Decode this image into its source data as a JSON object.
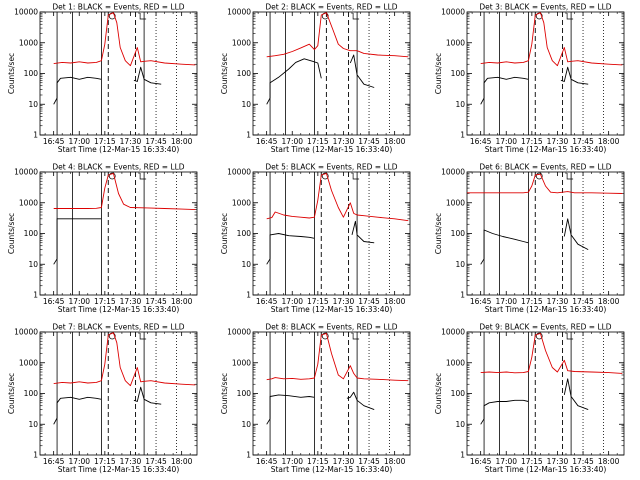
{
  "figure": {
    "title_template": "Det {n}: BLACK = Events, RED = LLD",
    "xlabel": "Start Time (12-Mar-15 16:33:40)",
    "ylabel": "Counts/sec",
    "x_tick_labels": [
      "16:45",
      "17:00",
      "17:15",
      "17:30",
      "17:45",
      "18:00"
    ],
    "y_tick_labels": [
      "1",
      "10",
      "100",
      "1000",
      "10000"
    ]
  },
  "chart_data": [
    {
      "type": "line",
      "detector": 1,
      "title": "Det 1: BLACK = Events, RED = LLD",
      "xlabel": "Start Time (12-Mar-15 16:33:40)",
      "ylabel": "Counts/sec",
      "xlim": [
        "16:37",
        "18:09"
      ],
      "ylim": [
        1,
        10000
      ],
      "y_scale": "log",
      "solid_markers": [
        "16:47",
        "16:56",
        "17:13",
        "17:38"
      ],
      "dashed_markers": [
        "17:17",
        "17:33"
      ],
      "dotted_markers": [
        "17:45",
        "17:57"
      ],
      "series": [
        {
          "name": "BLACK = Events",
          "color": "#000000",
          "x": [
            "16:45",
            "16:47",
            "16:47",
            "16:49",
            "16:55",
            "17:00",
            "17:05",
            "17:10",
            "17:13",
            "17:14",
            "17:30",
            "17:32",
            "17:34",
            "17:36",
            "17:38",
            "17:42",
            "17:48"
          ],
          "y": [
            10,
            16,
            50,
            70,
            75,
            65,
            75,
            70,
            65,
            null,
            null,
            60,
            55,
            160,
            65,
            50,
            45
          ]
        },
        {
          "name": "RED = LLD",
          "color": "#dd0000",
          "x": [
            "16:45",
            "16:50",
            "16:55",
            "17:00",
            "17:05",
            "17:10",
            "17:13",
            "17:15",
            "17:17",
            "17:20",
            "17:22",
            "17:24",
            "17:27",
            "17:30",
            "17:34",
            "17:36",
            "17:38",
            "17:42",
            "17:50",
            "18:00",
            "18:08"
          ],
          "y": [
            210,
            230,
            220,
            240,
            220,
            230,
            260,
            900,
            8000,
            9500,
            4500,
            700,
            260,
            180,
            700,
            240,
            250,
            260,
            220,
            200,
            190
          ]
        }
      ]
    },
    {
      "type": "line",
      "detector": 2,
      "title": "Det 2: BLACK = Events, RED = LLD",
      "xlabel": "Start Time (12-Mar-15 16:33:40)",
      "ylabel": "Counts/sec",
      "xlim": [
        "16:37",
        "18:09"
      ],
      "ylim": [
        1,
        10000
      ],
      "y_scale": "log",
      "solid_markers": [
        "16:47",
        "16:56",
        "17:13",
        "17:38"
      ],
      "dashed_markers": [
        "17:20",
        "17:33"
      ],
      "dotted_markers": [
        "17:45",
        "17:57"
      ],
      "series": [
        {
          "name": "BLACK = Events",
          "color": "#000000",
          "x": [
            "16:45",
            "16:47",
            "16:47",
            "16:52",
            "16:58",
            "17:02",
            "17:07",
            "17:12",
            "17:15",
            "17:17",
            "17:19",
            "17:32",
            "17:34",
            "17:36",
            "17:38",
            "17:42",
            "17:48"
          ],
          "y": [
            10,
            16,
            50,
            75,
            140,
            230,
            300,
            250,
            220,
            70,
            null,
            null,
            220,
            400,
            90,
            45,
            35
          ]
        },
        {
          "name": "RED = LLD",
          "color": "#dd0000",
          "x": [
            "16:45",
            "16:50",
            "16:55",
            "17:00",
            "17:05",
            "17:10",
            "17:13",
            "17:15",
            "17:17",
            "17:20",
            "17:24",
            "17:27",
            "17:30",
            "17:34",
            "17:38",
            "17:42",
            "17:50",
            "18:00",
            "18:08"
          ],
          "y": [
            350,
            380,
            420,
            520,
            680,
            900,
            600,
            800,
            8000,
            9500,
            2500,
            900,
            650,
            550,
            550,
            450,
            400,
            380,
            350
          ]
        }
      ]
    },
    {
      "type": "line",
      "detector": 3,
      "title": "Det 3: BLACK = Events, RED = LLD",
      "xlabel": "Start Time (12-Mar-15 16:33:40)",
      "ylabel": "Counts/sec",
      "xlim": [
        "16:37",
        "18:09"
      ],
      "ylim": [
        1,
        10000
      ],
      "y_scale": "log",
      "solid_markers": [
        "16:47",
        "16:56",
        "17:13",
        "17:38"
      ],
      "dashed_markers": [
        "17:17",
        "17:33"
      ],
      "dotted_markers": [
        "17:45",
        "17:57"
      ],
      "series": [
        {
          "name": "BLACK = Events",
          "color": "#000000",
          "x": [
            "16:45",
            "16:47",
            "16:47",
            "16:49",
            "16:55",
            "17:00",
            "17:05",
            "17:10",
            "17:13",
            "17:14",
            "17:30",
            "17:32",
            "17:34",
            "17:36",
            "17:38",
            "17:42",
            "17:48"
          ],
          "y": [
            10,
            16,
            50,
            70,
            75,
            65,
            75,
            70,
            65,
            null,
            null,
            60,
            55,
            160,
            65,
            50,
            45
          ]
        },
        {
          "name": "RED = LLD",
          "color": "#dd0000",
          "x": [
            "16:45",
            "16:50",
            "16:55",
            "17:00",
            "17:05",
            "17:10",
            "17:13",
            "17:15",
            "17:17",
            "17:20",
            "17:22",
            "17:24",
            "17:27",
            "17:30",
            "17:34",
            "17:36",
            "17:38",
            "17:42",
            "17:50",
            "18:00",
            "18:08"
          ],
          "y": [
            210,
            230,
            220,
            240,
            220,
            230,
            260,
            900,
            8000,
            9500,
            4500,
            700,
            260,
            180,
            700,
            240,
            250,
            260,
            220,
            200,
            190
          ]
        }
      ]
    },
    {
      "type": "line",
      "detector": 4,
      "title": "Det 4: BLACK = Events, RED = LLD",
      "xlabel": "Start Time (12-Mar-15 16:33:40)",
      "ylabel": "Counts/sec",
      "xlim": [
        "16:37",
        "18:09"
      ],
      "ylim": [
        1,
        10000
      ],
      "y_scale": "log",
      "solid_markers": [
        "16:47",
        "16:56",
        "17:13",
        "17:38"
      ],
      "dashed_markers": [
        "17:17",
        "17:33"
      ],
      "dotted_markers": [
        "17:45",
        "17:57"
      ],
      "series": [
        {
          "name": "BLACK = Events",
          "color": "#000000",
          "x": [
            "16:45",
            "16:47",
            "16:47",
            "16:55",
            "17:05",
            "17:13",
            "17:14"
          ],
          "y": [
            10,
            15,
            300,
            300,
            300,
            300,
            null
          ]
        },
        {
          "name": "RED = LLD",
          "color": "#dd0000",
          "x": [
            "16:45",
            "16:55",
            "17:05",
            "17:10",
            "17:13",
            "17:15",
            "17:17",
            "17:20",
            "17:23",
            "17:26",
            "17:30",
            "17:40",
            "17:50",
            "18:00",
            "18:08"
          ],
          "y": [
            650,
            650,
            650,
            660,
            700,
            3000,
            8000,
            9000,
            2000,
            900,
            700,
            680,
            650,
            620,
            600
          ]
        }
      ]
    },
    {
      "type": "line",
      "detector": 5,
      "title": "Det 5: BLACK = Events, RED = LLD",
      "xlabel": "Start Time (12-Mar-15 16:33:40)",
      "ylabel": "Counts/sec",
      "xlim": [
        "16:37",
        "18:09"
      ],
      "ylim": [
        1,
        10000
      ],
      "y_scale": "log",
      "solid_markers": [
        "16:47",
        "16:56",
        "17:13",
        "17:38"
      ],
      "dashed_markers": [
        "17:17",
        "17:33"
      ],
      "dotted_markers": [
        "17:45",
        "17:57"
      ],
      "series": [
        {
          "name": "BLACK = Events",
          "color": "#000000",
          "x": [
            "16:45",
            "16:47",
            "16:47",
            "16:52",
            "16:58",
            "17:05",
            "17:10",
            "17:13",
            "17:14",
            "17:33",
            "17:35",
            "17:37",
            "17:38",
            "17:42",
            "17:48"
          ],
          "y": [
            10,
            15,
            90,
            100,
            85,
            80,
            75,
            70,
            null,
            null,
            90,
            250,
            90,
            55,
            50
          ]
        },
        {
          "name": "RED = LLD",
          "color": "#dd0000",
          "x": [
            "16:45",
            "16:48",
            "16:50",
            "16:55",
            "17:00",
            "17:05",
            "17:10",
            "17:13",
            "17:15",
            "17:17",
            "17:20",
            "17:23",
            "17:27",
            "17:30",
            "17:34",
            "17:36",
            "17:38",
            "17:42",
            "17:50",
            "18:00",
            "18:08"
          ],
          "y": [
            300,
            330,
            500,
            400,
            360,
            340,
            320,
            340,
            1200,
            8000,
            9000,
            2500,
            700,
            340,
            1000,
            450,
            400,
            380,
            340,
            300,
            260
          ]
        }
      ]
    },
    {
      "type": "line",
      "detector": 6,
      "title": "Det 6: BLACK = Events, RED = LLD",
      "xlabel": "Start Time (12-Mar-15 16:33:40)",
      "ylabel": "Counts/sec",
      "xlim": [
        "16:37",
        "18:09"
      ],
      "ylim": [
        1,
        10000
      ],
      "y_scale": "log",
      "solid_markers": [
        "16:47",
        "16:56",
        "17:13",
        "17:38"
      ],
      "dashed_markers": [
        "17:17",
        "17:33"
      ],
      "dotted_markers": [
        "17:45",
        "17:57"
      ],
      "series": [
        {
          "name": "BLACK = Events",
          "color": "#000000",
          "x": [
            "16:45",
            "16:47",
            "16:47",
            "16:52",
            "16:58",
            "17:05",
            "17:10",
            "17:13",
            "17:14",
            "17:32",
            "17:34",
            "17:36",
            "17:38",
            "17:42",
            "17:48"
          ],
          "y": [
            10,
            15,
            130,
            100,
            80,
            65,
            55,
            50,
            null,
            null,
            80,
            300,
            90,
            45,
            30
          ]
        },
        {
          "name": "RED = LLD",
          "color": "#dd0000",
          "x": [
            "16:37",
            "16:50",
            "17:00",
            "17:10",
            "17:13",
            "17:15",
            "17:17",
            "17:20",
            "17:23",
            "17:26",
            "17:30",
            "17:36",
            "17:40",
            "17:50",
            "18:00",
            "18:08"
          ],
          "y": [
            2100,
            2100,
            2100,
            2100,
            2200,
            3500,
            8000,
            8500,
            3500,
            2200,
            2100,
            2300,
            2100,
            2100,
            2050,
            2000
          ]
        }
      ]
    },
    {
      "type": "line",
      "detector": 7,
      "title": "Det 7: BLACK = Events, RED = LLD",
      "xlabel": "Start Time (12-Mar-15 16:33:40)",
      "ylabel": "Counts/sec",
      "xlim": [
        "16:37",
        "18:09"
      ],
      "ylim": [
        1,
        10000
      ],
      "y_scale": "log",
      "solid_markers": [
        "16:47",
        "16:56",
        "17:13",
        "17:38"
      ],
      "dashed_markers": [
        "17:17",
        "17:33"
      ],
      "dotted_markers": [
        "17:45",
        "17:57"
      ],
      "series": [
        {
          "name": "BLACK = Events",
          "color": "#000000",
          "x": [
            "16:45",
            "16:47",
            "16:47",
            "16:49",
            "16:55",
            "17:00",
            "17:05",
            "17:10",
            "17:13",
            "17:14",
            "17:30",
            "17:32",
            "17:34",
            "17:36",
            "17:38",
            "17:42",
            "17:48"
          ],
          "y": [
            10,
            16,
            50,
            70,
            75,
            65,
            75,
            70,
            65,
            null,
            null,
            60,
            55,
            160,
            65,
            50,
            45
          ]
        },
        {
          "name": "RED = LLD",
          "color": "#dd0000",
          "x": [
            "16:45",
            "16:50",
            "16:55",
            "17:00",
            "17:05",
            "17:10",
            "17:13",
            "17:15",
            "17:17",
            "17:20",
            "17:22",
            "17:24",
            "17:27",
            "17:30",
            "17:34",
            "17:36",
            "17:38",
            "17:42",
            "17:50",
            "18:00",
            "18:08"
          ],
          "y": [
            210,
            230,
            220,
            240,
            220,
            230,
            260,
            900,
            8000,
            9500,
            4500,
            700,
            260,
            180,
            700,
            240,
            250,
            260,
            220,
            200,
            190
          ]
        }
      ]
    },
    {
      "type": "line",
      "detector": 8,
      "title": "Det 8: BLACK = Events, RED = LLD",
      "xlabel": "Start Time (12-Mar-15 16:33:40)",
      "ylabel": "Counts/sec",
      "xlim": [
        "16:37",
        "18:09"
      ],
      "ylim": [
        1,
        10000
      ],
      "y_scale": "log",
      "solid_markers": [
        "16:47",
        "16:56",
        "17:13",
        "17:38"
      ],
      "dashed_markers": [
        "17:17",
        "17:33"
      ],
      "dotted_markers": [
        "17:45",
        "17:57"
      ],
      "series": [
        {
          "name": "BLACK = Events",
          "color": "#000000",
          "x": [
            "16:45",
            "16:47",
            "16:47",
            "16:52",
            "16:58",
            "17:05",
            "17:10",
            "17:13",
            "17:14",
            "17:30",
            "17:32",
            "17:34",
            "17:36",
            "17:38",
            "17:42",
            "17:48"
          ],
          "y": [
            10,
            15,
            80,
            90,
            85,
            75,
            80,
            75,
            null,
            null,
            70,
            75,
            110,
            60,
            40,
            30
          ]
        },
        {
          "name": "RED = LLD",
          "color": "#dd0000",
          "x": [
            "16:45",
            "16:48",
            "16:50",
            "16:55",
            "17:00",
            "17:05",
            "17:10",
            "17:13",
            "17:15",
            "17:17",
            "17:20",
            "17:23",
            "17:27",
            "17:30",
            "17:34",
            "17:36",
            "17:38",
            "17:42",
            "17:50",
            "18:00",
            "18:08"
          ],
          "y": [
            280,
            300,
            330,
            300,
            310,
            290,
            300,
            320,
            900,
            8000,
            9000,
            2000,
            400,
            300,
            800,
            450,
            320,
            300,
            290,
            270,
            260
          ]
        }
      ]
    },
    {
      "type": "line",
      "detector": 9,
      "title": "Det 9: BLACK = Events, RED = LLD",
      "xlabel": "Start Time (12-Mar-15 16:33:40)",
      "ylabel": "Counts/sec",
      "xlim": [
        "16:37",
        "18:09"
      ],
      "ylim": [
        1,
        10000
      ],
      "y_scale": "log",
      "solid_markers": [
        "16:47",
        "16:56",
        "17:13",
        "17:38"
      ],
      "dashed_markers": [
        "17:17",
        "17:33"
      ],
      "dotted_markers": [
        "17:45",
        "17:57"
      ],
      "series": [
        {
          "name": "BLACK = Events",
          "color": "#000000",
          "x": [
            "16:45",
            "16:47",
            "16:47",
            "16:50",
            "16:55",
            "17:00",
            "17:05",
            "17:10",
            "17:13",
            "17:14",
            "17:32",
            "17:34",
            "17:36",
            "17:38",
            "17:42",
            "17:48"
          ],
          "y": [
            10,
            15,
            40,
            50,
            55,
            55,
            60,
            60,
            55,
            null,
            null,
            90,
            300,
            80,
            40,
            30
          ]
        },
        {
          "name": "RED = LLD",
          "color": "#dd0000",
          "x": [
            "16:45",
            "16:50",
            "16:55",
            "17:00",
            "17:05",
            "17:10",
            "17:13",
            "17:15",
            "17:17",
            "17:20",
            "17:23",
            "17:27",
            "17:30",
            "17:34",
            "17:36",
            "17:40",
            "17:50",
            "18:00",
            "18:08"
          ],
          "y": [
            480,
            500,
            480,
            500,
            470,
            480,
            520,
            1500,
            8000,
            9000,
            2500,
            700,
            500,
            1200,
            550,
            520,
            500,
            480,
            450
          ]
        }
      ]
    }
  ]
}
